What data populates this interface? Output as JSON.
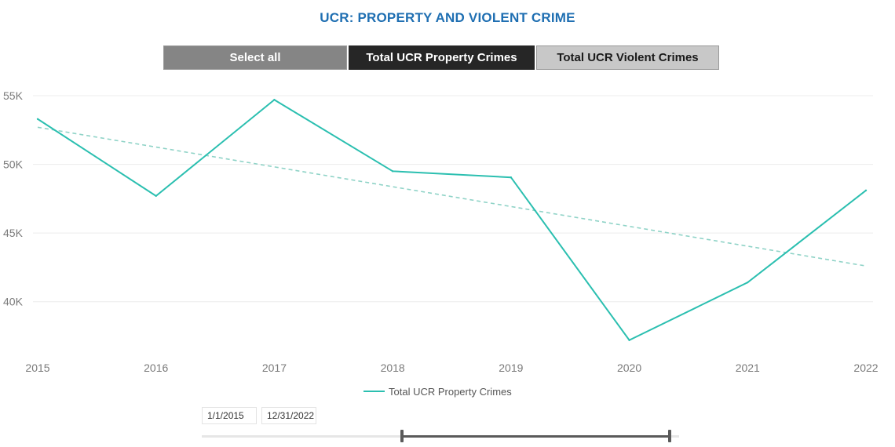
{
  "title": "UCR: PROPERTY AND VIOLENT CRIME",
  "tabs": {
    "select_all": "Select all",
    "property": "Total UCR Property Crimes",
    "violent": "Total UCR Violent Crimes"
  },
  "chart_data": {
    "type": "line",
    "x": [
      "2015",
      "2016",
      "2017",
      "2018",
      "2019",
      "2020",
      "2021",
      "2022"
    ],
    "series": [
      {
        "name": "Total UCR Property Crimes",
        "values": [
          53300,
          47700,
          54700,
          49500,
          49050,
          37200,
          41400,
          48100
        ],
        "color": "#2bbfb0"
      }
    ],
    "trendline": {
      "values": [
        52700,
        42600
      ],
      "color": "#8fd3c7",
      "style": "dashed"
    },
    "y_ticks": [
      {
        "value": 40000,
        "label": "40K"
      },
      {
        "value": 45000,
        "label": "45K"
      },
      {
        "value": 50000,
        "label": "50K"
      },
      {
        "value": 55000,
        "label": "55K"
      }
    ],
    "ylim": [
      36500,
      55000
    ],
    "grid": true,
    "legend_position": "bottom-center",
    "title": "",
    "xlabel": "",
    "ylabel": ""
  },
  "slicer": {
    "start_date": "1/1/2015",
    "end_date": "12/31/2022",
    "range_start": 0.42,
    "range_end": 0.98
  }
}
